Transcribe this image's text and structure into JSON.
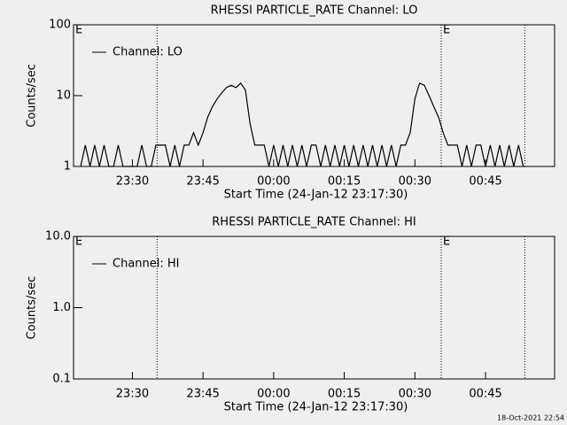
{
  "chart_data": [
    {
      "type": "line",
      "title": "RHESSI PARTICLE_RATE Channel: LO",
      "xlabel": "Start Time (24-Jan-12 23:17:30)",
      "ylabel": "Counts/sec",
      "log_y": true,
      "ylim": [
        1,
        100
      ],
      "yticks": [
        1,
        10,
        100
      ],
      "xlim": [
        "23:17:30",
        "00:59:40"
      ],
      "xticks": [
        "23:30",
        "23:45",
        "00:00",
        "00:15",
        "00:30",
        "00:45"
      ],
      "event_lines": [
        "23:35:15",
        "00:35:35",
        "00:53:20"
      ],
      "annotations": [
        {
          "text": "E",
          "x": "23:17:30"
        },
        {
          "text": "E",
          "x": "00:35:35"
        }
      ],
      "x": [
        "23:19",
        "23:20",
        "23:21",
        "23:22",
        "23:23",
        "23:24",
        "23:25",
        "23:26",
        "23:27",
        "23:28",
        "23:29",
        "23:30",
        "23:31",
        "23:32",
        "23:33",
        "23:34",
        "23:35",
        "23:36",
        "23:37",
        "23:38",
        "23:39",
        "23:40",
        "23:41",
        "23:42",
        "23:43",
        "23:44",
        "23:45",
        "23:46",
        "23:47",
        "23:48",
        "23:49",
        "23:50",
        "23:51",
        "23:52",
        "23:53",
        "23:54",
        "23:55",
        "23:56",
        "23:57",
        "23:58",
        "23:59",
        "00:00",
        "00:01",
        "00:02",
        "00:03",
        "00:04",
        "00:05",
        "00:06",
        "00:07",
        "00:08",
        "00:09",
        "00:10",
        "00:11",
        "00:12",
        "00:13",
        "00:14",
        "00:15",
        "00:16",
        "00:17",
        "00:18",
        "00:19",
        "00:20",
        "00:21",
        "00:22",
        "00:23",
        "00:24",
        "00:25",
        "00:26",
        "00:27",
        "00:28",
        "00:29",
        "00:30",
        "00:31",
        "00:32",
        "00:33",
        "00:34",
        "00:35",
        "00:36",
        "00:37",
        "00:38",
        "00:39",
        "00:40",
        "00:41",
        "00:42",
        "00:43",
        "00:44",
        "00:45",
        "00:46",
        "00:47",
        "00:48",
        "00:49",
        "00:50",
        "00:51",
        "00:52",
        "00:53"
      ],
      "series": [
        {
          "name": "Channel: LO",
          "color": "#000000",
          "values": [
            1,
            2,
            1,
            2,
            1,
            2,
            1,
            1,
            2,
            1,
            1,
            1,
            1,
            2,
            1,
            1,
            2,
            2,
            2,
            1,
            2,
            1,
            2,
            2,
            3,
            2,
            3,
            5,
            7,
            9,
            11,
            13,
            14,
            13,
            15,
            12,
            4,
            2,
            2,
            2,
            1,
            2,
            1,
            2,
            1,
            2,
            1,
            2,
            1,
            2,
            2,
            1,
            2,
            1,
            2,
            1,
            2,
            1,
            2,
            1,
            2,
            1,
            2,
            1,
            2,
            1,
            2,
            1,
            2,
            2,
            3,
            9,
            15,
            14,
            10,
            7,
            5,
            3,
            2,
            2,
            2,
            1,
            2,
            1,
            2,
            2,
            1,
            2,
            1,
            2,
            1,
            2,
            1,
            2,
            1
          ]
        }
      ]
    },
    {
      "type": "line",
      "title": "RHESSI PARTICLE_RATE Channel: HI",
      "xlabel": "Start Time (24-Jan-12 23:17:30)",
      "ylabel": "Counts/sec",
      "log_y": true,
      "ylim": [
        0.1,
        10
      ],
      "yticks": [
        0.1,
        {
          "value": 1,
          "label": "1.0"
        },
        {
          "value": 10,
          "label": "10.0"
        }
      ],
      "xlim": [
        "23:17:30",
        "00:59:40"
      ],
      "xticks": [
        "23:30",
        "23:45",
        "00:00",
        "00:15",
        "00:30",
        "00:45"
      ],
      "event_lines": [
        "23:35:15",
        "00:35:35",
        "00:53:20"
      ],
      "annotations": [
        {
          "text": "E",
          "x": "23:17:30"
        },
        {
          "text": "E",
          "x": "00:35:35"
        }
      ],
      "x": [],
      "series": [
        {
          "name": "Channel: HI",
          "color": "#000000",
          "values": []
        }
      ]
    }
  ],
  "footer": "18-Oct-2021 22:54"
}
